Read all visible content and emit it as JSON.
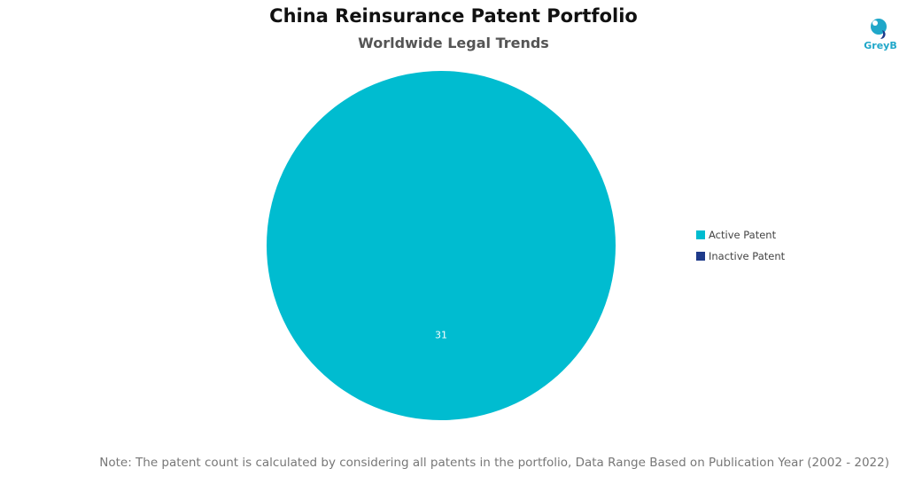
{
  "brand": {
    "name": "GreyB",
    "color": "#1fa7c9",
    "icon": "greyb-logo-icon"
  },
  "note": "Note: The patent count is calculated by considering all patents in the portfolio, Data Range Based on Publication Year (2002 - 2022)",
  "chart_data": {
    "type": "pie",
    "title": "China Reinsurance Patent Portfolio",
    "subtitle": "Worldwide Legal Trends",
    "legend_position": "right",
    "series": [
      {
        "name": "Active Patent",
        "value": 31,
        "color": "#00bcd0",
        "label": "31"
      },
      {
        "name": "Inactive Patent",
        "value": 0,
        "color": "#1e3a8a",
        "label": ""
      }
    ]
  }
}
